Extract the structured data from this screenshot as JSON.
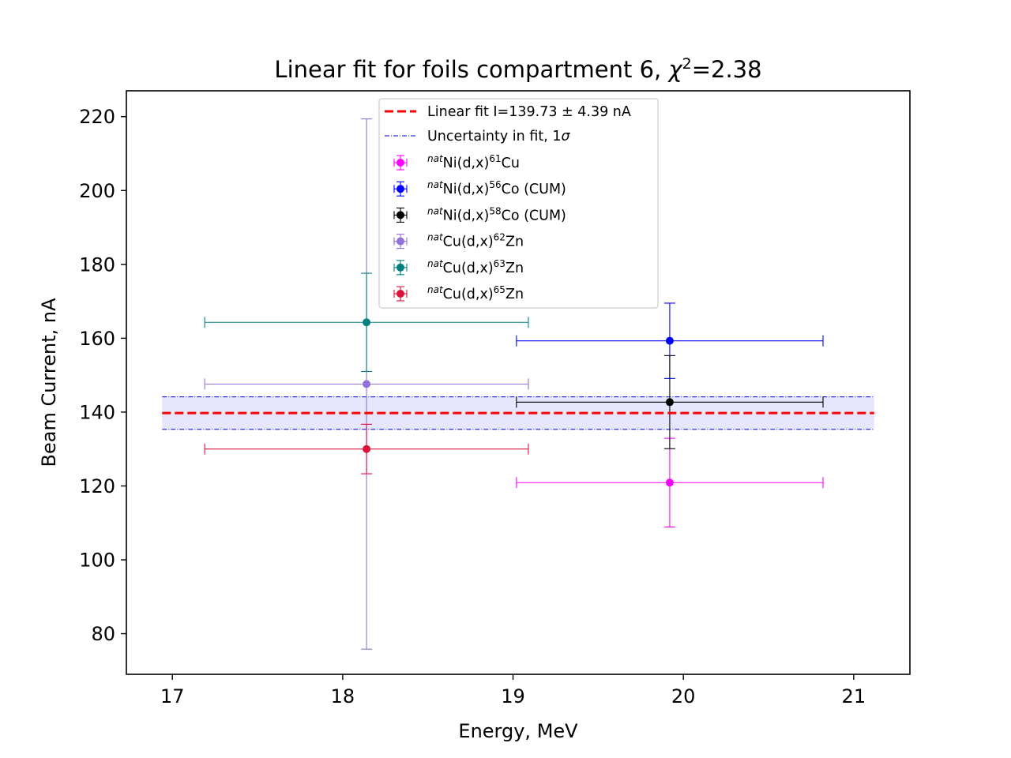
{
  "chart_data": {
    "type": "scatter",
    "title": "Linear fit for foils compartment 6, χ²=2.38",
    "title_parts": {
      "main": "Linear fit for foils compartment 6, ",
      "chi": "χ",
      "sup": "2",
      "value": "=2.38"
    },
    "xlabel": "Energy, MeV",
    "ylabel": "Beam Current, nA",
    "xlim": [
      16.73,
      21.33
    ],
    "ylim": [
      69,
      227
    ],
    "xticks": [
      17,
      18,
      19,
      20,
      21
    ],
    "yticks": [
      80,
      100,
      120,
      140,
      160,
      180,
      200,
      220
    ],
    "grid": false,
    "legend_position": "upper-center",
    "fit": {
      "label": "Linear fit I=139.73 ± 4.39 nA",
      "value": 139.73,
      "uncertainty": 4.39,
      "x_range": [
        16.94,
        21.12
      ],
      "color": "#ff0000"
    },
    "band": {
      "label_text": "Uncertainty in fit, 1",
      "label_sigma": "σ",
      "lower": 135.34,
      "upper": 144.12,
      "line_color": "#0000cc",
      "fill_color": "#e6e6ff"
    },
    "series": [
      {
        "name": "natNi(d,x)61Cu",
        "sup1": "nat",
        "a": "Ni(d,x)",
        "sup2": "61",
        "b": "Cu",
        "color": "#ff00ff",
        "points": [
          {
            "x": 19.92,
            "y": 120.9,
            "xerr": 0.9,
            "yerr": 12.0
          }
        ]
      },
      {
        "name": "natNi(d,x)56Co (CUM)",
        "sup1": "nat",
        "a": "Ni(d,x)",
        "sup2": "56",
        "b": "Co (CUM)",
        "color": "#0000ff",
        "points": [
          {
            "x": 19.92,
            "y": 159.3,
            "xerr": 0.9,
            "yerr": 10.2
          }
        ]
      },
      {
        "name": "natNi(d,x)58Co (CUM)",
        "sup1": "nat",
        "a": "Ni(d,x)",
        "sup2": "58",
        "b": "Co (CUM)",
        "color": "#000000",
        "points": [
          {
            "x": 19.92,
            "y": 142.7,
            "xerr": 0.9,
            "yerr": 12.6
          }
        ]
      },
      {
        "name": "natCu(d,x)62Zn",
        "sup1": "nat",
        "a": "Cu(d,x)",
        "sup2": "62",
        "b": "Zn",
        "color": "#9370db",
        "points": [
          {
            "x": 18.14,
            "y": 147.6,
            "xerr": 0.95,
            "yerr": 71.8
          }
        ]
      },
      {
        "name": "natCu(d,x)63Zn",
        "sup1": "nat",
        "a": "Cu(d,x)",
        "sup2": "63",
        "b": "Zn",
        "color": "#008080",
        "points": [
          {
            "x": 18.14,
            "y": 164.3,
            "xerr": 0.95,
            "yerr": 13.3
          }
        ]
      },
      {
        "name": "natCu(d,x)65Zn",
        "sup1": "nat",
        "a": "Cu(d,x)",
        "sup2": "65",
        "b": "Zn",
        "color": "#dc143c",
        "points": [
          {
            "x": 18.14,
            "y": 130.0,
            "xerr": 0.95,
            "yerr": 6.7
          }
        ]
      }
    ]
  }
}
